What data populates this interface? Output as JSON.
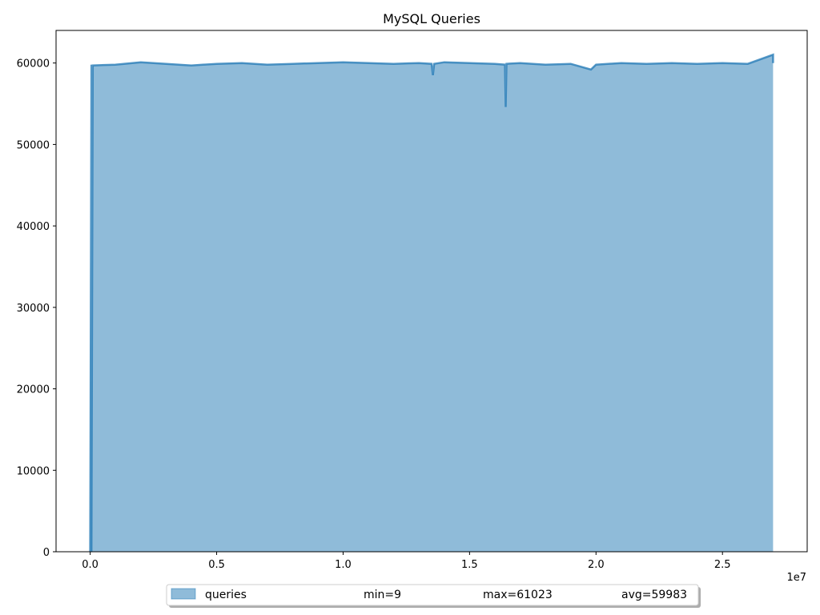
{
  "chart_data": {
    "type": "area",
    "title": "MySQL Queries",
    "xlabel": "",
    "ylabel": "",
    "x_offset_label": "1e7",
    "xlim": [
      -0.135,
      2.835
    ],
    "ylim": [
      0,
      64000
    ],
    "x_ticks": [
      0.0,
      0.5,
      1.0,
      1.5,
      2.0,
      2.5
    ],
    "x_tick_labels": [
      "0.0",
      "0.5",
      "1.0",
      "1.5",
      "2.0",
      "2.5"
    ],
    "y_ticks": [
      0,
      10000,
      20000,
      30000,
      40000,
      50000,
      60000
    ],
    "y_tick_labels": [
      "0",
      "10000",
      "20000",
      "30000",
      "40000",
      "50000",
      "60000"
    ],
    "grid": false,
    "legend_position": "bottom-center",
    "series": [
      {
        "name": "queries",
        "color": "#1f77b4",
        "x": [
          0.0,
          0.005,
          0.005,
          0.01,
          0.01,
          0.1,
          0.2,
          0.3,
          0.4,
          0.5,
          0.6,
          0.7,
          0.8,
          0.9,
          1.0,
          1.1,
          1.2,
          1.3,
          1.35,
          1.355,
          1.36,
          1.4,
          1.5,
          1.6,
          1.64,
          1.643,
          1.646,
          1.7,
          1.8,
          1.9,
          1.98,
          2.0,
          2.1,
          2.2,
          2.3,
          2.4,
          2.5,
          2.6,
          2.7,
          2.7
        ],
        "values": [
          9,
          59800,
          9,
          59500,
          59700,
          59800,
          60100,
          59900,
          59700,
          59900,
          60000,
          59800,
          59900,
          60000,
          60100,
          60000,
          59900,
          60000,
          59900,
          58500,
          59900,
          60100,
          60000,
          59900,
          59800,
          54600,
          59900,
          60000,
          59800,
          59900,
          59200,
          59800,
          60000,
          59900,
          60000,
          59900,
          60000,
          59900,
          61023,
          60000
        ]
      }
    ],
    "legend": {
      "label": "queries",
      "min_text": "min=9",
      "max_text": "max=61023",
      "avg_text": "avg=59983"
    }
  }
}
